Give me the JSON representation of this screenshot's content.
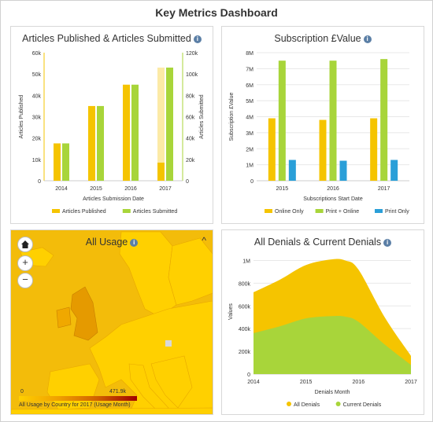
{
  "dashboard": {
    "title": "Key Metrics Dashboard"
  },
  "info_glyph": "i",
  "panel1": {
    "title": "Articles Published & Articles Submitted",
    "chart_data": {
      "type": "bar",
      "categories": [
        "2014",
        "2015",
        "2016",
        "2017"
      ],
      "series": [
        {
          "name": "Articles Published",
          "values": [
            17500,
            35000,
            45000,
            8500
          ],
          "axis": "left",
          "color": "#f5c400"
        },
        {
          "name": "Articles Submitted",
          "values": [
            35000,
            70000,
            90000,
            106000
          ],
          "axis": "right",
          "color": "#a8d53a"
        }
      ],
      "ylim_left": [
        0,
        60000
      ],
      "ylim_right": [
        0,
        120000
      ],
      "left_ticks": [
        "0",
        "10k",
        "20k",
        "30k",
        "40k",
        "50k",
        "60k"
      ],
      "right_ticks": [
        "0",
        "20k",
        "40k",
        "60k",
        "80k",
        "100k",
        "120k"
      ],
      "ylabel_left": "Articles Published",
      "ylabel_right": "Articles Submitted",
      "xlabel": "Articles Submission Date",
      "grid": false,
      "legend": "bottom"
    }
  },
  "panel2": {
    "title": "Subscription £Value",
    "chart_data": {
      "type": "bar",
      "categories": [
        "2015",
        "2016",
        "2017"
      ],
      "series": [
        {
          "name": "Online Only",
          "values": [
            3900000,
            3800000,
            3900000
          ],
          "color": "#f5c400"
        },
        {
          "name": "Print + Online",
          "values": [
            7500000,
            7500000,
            7600000
          ],
          "color": "#a8d53a"
        },
        {
          "name": "Print Only",
          "values": [
            1300000,
            1250000,
            1300000
          ],
          "color": "#2a9fd8"
        }
      ],
      "ylim": [
        0,
        8000000
      ],
      "ticks": [
        "0",
        "1M",
        "2M",
        "3M",
        "4M",
        "5M",
        "6M",
        "7M",
        "8M"
      ],
      "ylabel": "Subscription £Value",
      "xlabel": "Subscriptions Start Date",
      "grid": true,
      "legend": "bottom"
    }
  },
  "panel3": {
    "title": "All Usage",
    "home_icon": "home-icon",
    "zoom_in": "+",
    "zoom_out": "−",
    "collapse": "^",
    "scale_min": "0",
    "scale_max": "471.9k",
    "caption": "All Usage by Country for 2017 (Usage Month)",
    "colors": {
      "sea": "#f3bc0a",
      "land": "#ffd000",
      "land_dark": "#e59a00"
    }
  },
  "panel4": {
    "title": "All Denials & Current Denials",
    "chart_data": {
      "type": "area",
      "x": [
        2014.0,
        2014.5,
        2015.0,
        2015.5,
        2015.75,
        2016.0,
        2016.5,
        2017.0
      ],
      "series": [
        {
          "name": "All Denials",
          "values": [
            720000,
            830000,
            960000,
            1010000,
            1000000,
            920000,
            500000,
            160000
          ],
          "color": "#f5c400"
        },
        {
          "name": "Current Denials",
          "values": [
            360000,
            420000,
            490000,
            510000,
            505000,
            460000,
            260000,
            80000
          ],
          "color": "#a8d53a"
        }
      ],
      "ylim": [
        0,
        1100000
      ],
      "ticks": [
        "0",
        "200k",
        "400k",
        "600k",
        "800k",
        "1M"
      ],
      "xticks": [
        "2014",
        "2015",
        "2016",
        "2017"
      ],
      "ylabel": "Values",
      "xlabel": "Denials Month",
      "grid": true,
      "legend": "bottom"
    }
  }
}
